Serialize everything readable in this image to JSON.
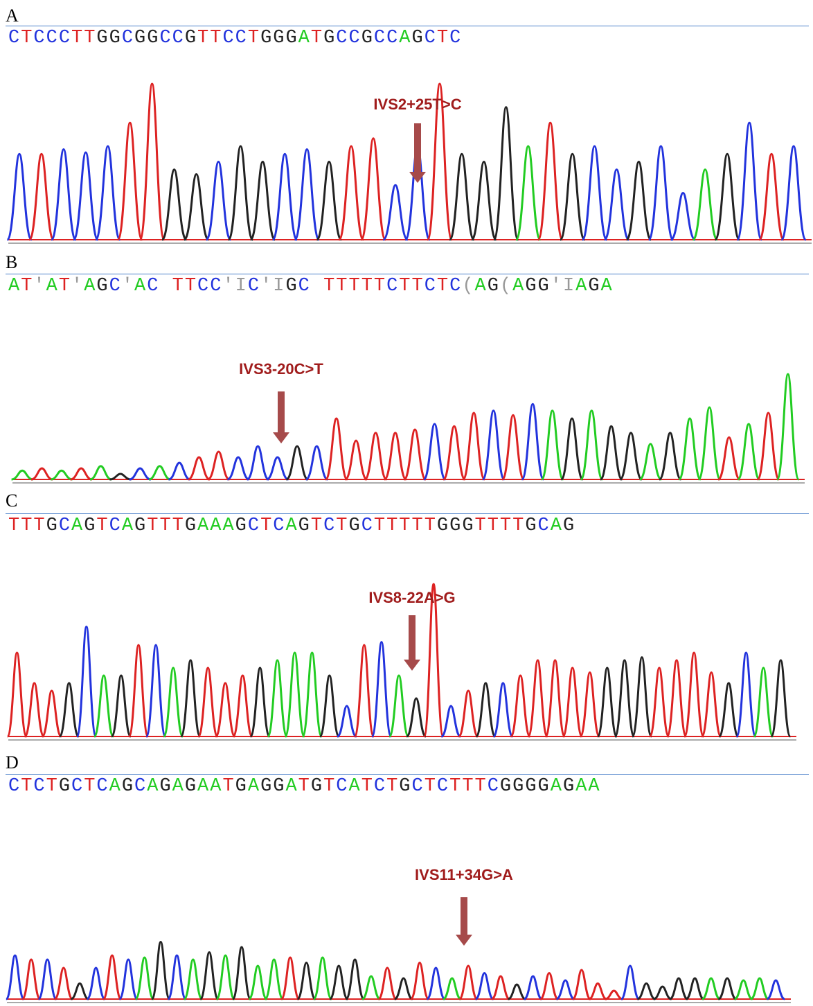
{
  "panels": [
    {
      "id": "A",
      "label": "A",
      "sequence": "CTCCCTTGGCGGCCGTTCCTGGGATGCCGCCAGCTC",
      "mutation": "IVS2+25T>C"
    },
    {
      "id": "B",
      "label": "B",
      "sequence": "AT'AT'AGC'AC TTCC'IC'IGC TTTTTCTTCTC(AG(AGG'IAGA",
      "mutation": "IVS3-20C>T"
    },
    {
      "id": "C",
      "label": "C",
      "sequence": "TTTGCAGTCAGTTTGAAAGCTCAGTCTGCTTTTTGGGTTTTGCAG",
      "mutation": "IVS8-22A>G"
    },
    {
      "id": "D",
      "label": "D",
      "sequence": "CTCTGCTCAGCAGAGAATGAGGATGTCATCTGCTCTTTCGGGGAGAA",
      "mutation": "IVS11+34G>A"
    }
  ],
  "colors": {
    "A": "#22cc22",
    "C": "#2233dd",
    "G": "#222222",
    "T": "#dd2222",
    "arrow": "#a64a4a",
    "label": "#a01c1c",
    "rule": "#4a7fc9"
  }
}
